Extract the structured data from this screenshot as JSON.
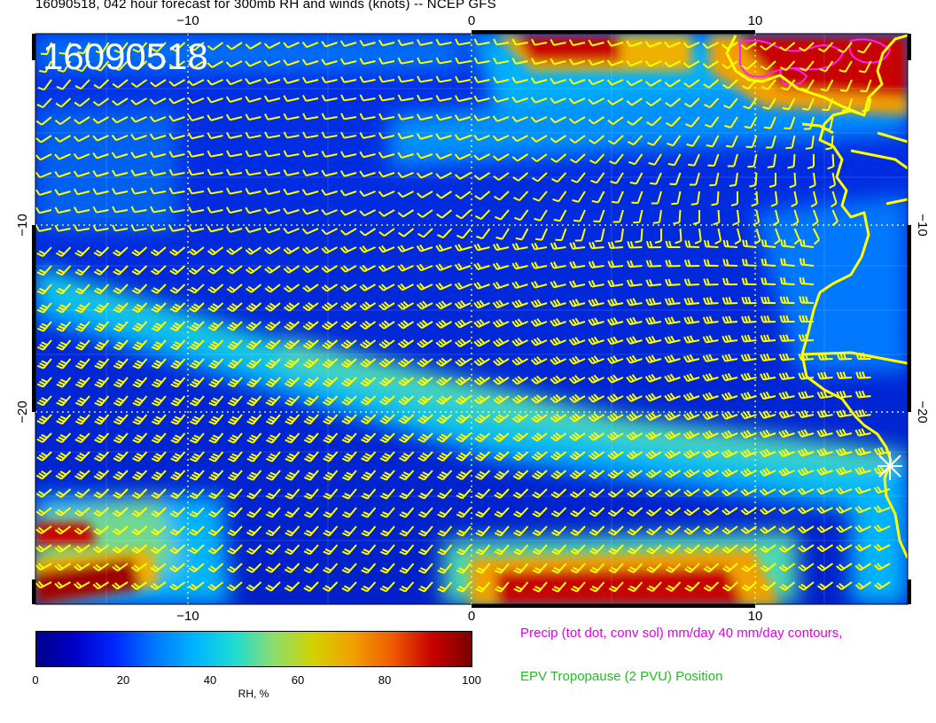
{
  "figure": {
    "title": "16090518, 042 hour forecast for 300mb RH and winds (knots) -- NCEP GFS",
    "stamp": "16090518",
    "precip_legend": "Precip (tot dot, conv sol) mm/day 40 mm/day contours,",
    "epv_legend": "EPV Tropopause (2 PVU) Position"
  },
  "axes": {
    "lon_ticks": [
      "−10",
      "0",
      "10"
    ],
    "lat_ticks": [
      "−10",
      "−20"
    ],
    "lon_values": [
      -10,
      0,
      10
    ],
    "lat_values": [
      -10,
      -20
    ]
  },
  "colorbar": {
    "label": "RH, %",
    "ticks": [
      "0",
      "20",
      "40",
      "60",
      "80",
      "100"
    ],
    "tick_values": [
      0,
      20,
      40,
      60,
      80,
      100
    ],
    "range": [
      0,
      100
    ],
    "colors": [
      "#00008c",
      "#0000c8",
      "#0028ff",
      "#0078ff",
      "#00b4ff",
      "#1edcd2",
      "#8cdc6e",
      "#d2d200",
      "#f0a000",
      "#f05a00",
      "#c80000",
      "#780000"
    ]
  },
  "chart_data": {
    "type": "heatmap",
    "title": "16090518, 042 hour forecast for 300mb RH and winds (knots) -- NCEP GFS",
    "variable": "RH, %",
    "colorbar_range": [
      0,
      100
    ],
    "lon_ticks": [
      -10,
      0,
      10
    ],
    "lat_ticks": [
      -10,
      -20
    ],
    "overlays": [
      "wind barbs (knots)",
      "coastline",
      "precip contours 40 mm/day",
      "EPV tropopause (2 PVU) position"
    ]
  },
  "colors": {
    "barb": "#ffff00",
    "coast": "#ffff00",
    "precip": "#e000e0",
    "epv": "#20c020",
    "stamp": "#ffffff"
  },
  "icons": {
    "barbs": "wind-barb-icon",
    "marker": "asterisk-marker-icon"
  }
}
